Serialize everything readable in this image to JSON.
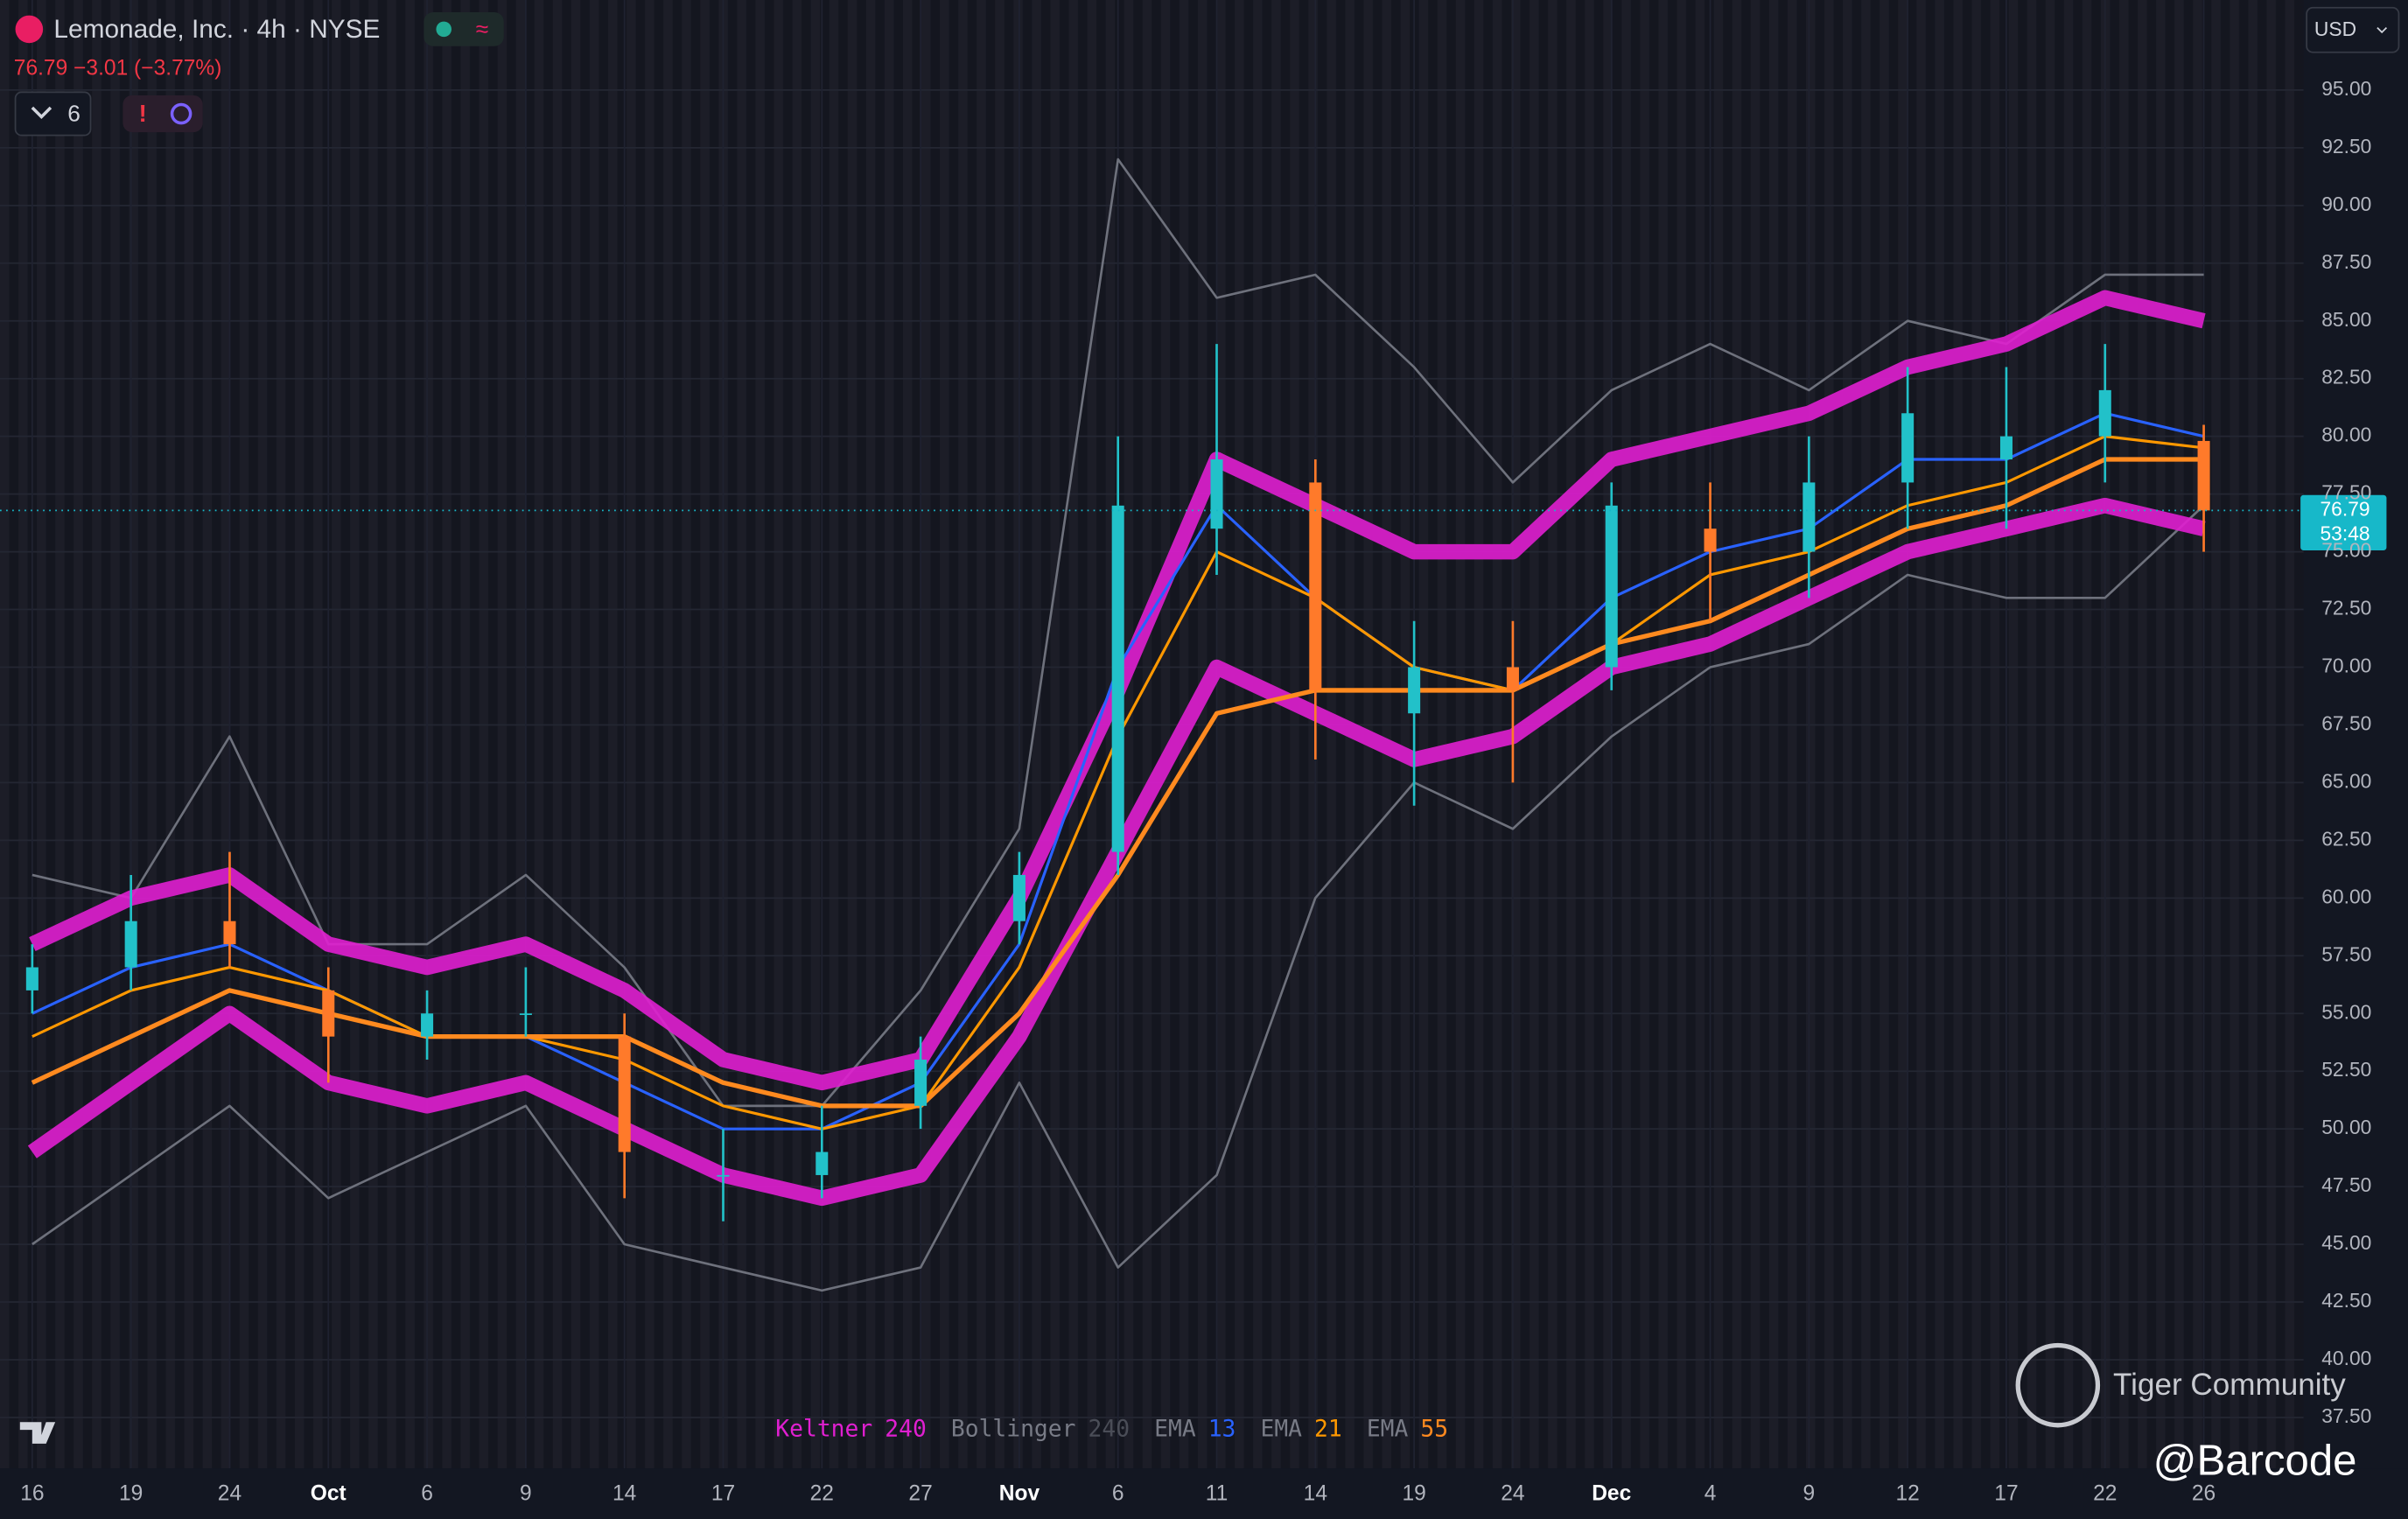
{
  "header": {
    "title": "Lemonade, Inc. · 4h · NYSE",
    "quote": "76.79 −3.01 (−3.77%)",
    "indicator_count": "6",
    "currency": "USD"
  },
  "price_tag": {
    "price": "76.79",
    "countdown": "53:48"
  },
  "watermark": {
    "brand": "Tiger Community",
    "user": "@Barcode"
  },
  "chart_data": {
    "type": "candlestick",
    "categories": [
      "16",
      "19",
      "24",
      "Oct",
      "6",
      "9",
      "14",
      "17",
      "22",
      "27",
      "Nov",
      "6",
      "11",
      "14",
      "19",
      "24",
      "Dec",
      "4",
      "9",
      "12",
      "17",
      "22",
      "26"
    ],
    "open": [
      56,
      57,
      59,
      56,
      54,
      55,
      54,
      48,
      48,
      51,
      59,
      62,
      76,
      78,
      68,
      70,
      70,
      76,
      75,
      78,
      79,
      80,
      79.8
    ],
    "high": [
      58,
      61,
      62,
      57,
      56,
      57,
      55,
      50,
      51,
      54,
      62,
      80,
      84,
      79,
      72,
      72,
      78,
      78,
      80,
      83,
      83,
      84,
      80.5
    ],
    "low": [
      55,
      56,
      57,
      52,
      53,
      54,
      47,
      46,
      47,
      50,
      58,
      61,
      74,
      66,
      64,
      65,
      69,
      72,
      73,
      76,
      76,
      78,
      75
    ],
    "close": [
      57,
      59,
      58,
      54,
      55,
      55,
      49,
      48,
      49,
      53,
      61,
      77,
      79,
      69,
      70,
      69,
      77,
      75,
      78,
      81,
      80,
      82,
      76.79
    ],
    "up_color": "#22c1c9",
    "down_color": "#ff7a2a",
    "series": [
      {
        "name": "Keltner",
        "param": "240",
        "color": "#e01fd0",
        "upper": [
          58,
          60,
          61,
          58,
          57,
          58,
          56,
          53,
          52,
          53,
          60,
          69,
          79,
          77,
          75,
          75,
          79,
          80,
          81,
          83,
          84,
          86,
          85
        ],
        "lower": [
          49,
          52,
          55,
          52,
          51,
          52,
          50,
          48,
          47,
          48,
          54,
          62,
          70,
          68,
          66,
          67,
          70,
          71,
          73,
          75,
          76,
          77,
          76
        ]
      },
      {
        "name": "Bollinger",
        "param": "240",
        "color": "#787b86",
        "upper": [
          61,
          60,
          67,
          58,
          58,
          61,
          57,
          51,
          51,
          56,
          63,
          92,
          86,
          87,
          83,
          78,
          82,
          84,
          82,
          85,
          84,
          87,
          87
        ],
        "lower": [
          45,
          48,
          51,
          47,
          49,
          51,
          45,
          44,
          43,
          44,
          52,
          44,
          48,
          60,
          65,
          63,
          67,
          70,
          71,
          74,
          73,
          73,
          77
        ]
      },
      {
        "name": "EMA",
        "param": "13",
        "color": "#2962ff",
        "values": [
          55,
          57,
          58,
          56,
          54,
          54,
          52,
          50,
          50,
          52,
          58,
          70,
          77,
          73,
          70,
          69,
          73,
          75,
          76,
          79,
          79,
          81,
          80
        ]
      },
      {
        "name": "EMA",
        "param": "21",
        "color": "#ff9800",
        "values": [
          54,
          56,
          57,
          56,
          54,
          54,
          53,
          51,
          50,
          51,
          57,
          67,
          75,
          73,
          70,
          69,
          71,
          74,
          75,
          77,
          78,
          80,
          79.5
        ]
      },
      {
        "name": "EMA",
        "param": "55",
        "color": "#ff8a1f",
        "values": [
          52,
          54,
          56,
          55,
          54,
          54,
          54,
          52,
          51,
          51,
          55,
          61,
          68,
          69,
          69,
          69,
          71,
          72,
          74,
          76,
          77,
          79,
          79
        ]
      }
    ],
    "ylim": [
      35.3,
      98.9
    ],
    "yticks": [
      {
        "value": 37.5,
        "label": "37.50"
      },
      {
        "value": 40,
        "label": "40.00"
      },
      {
        "value": 42.5,
        "label": "42.50"
      },
      {
        "value": 45,
        "label": "45.00"
      },
      {
        "value": 47.5,
        "label": "47.50"
      },
      {
        "value": 50,
        "label": "50.00"
      },
      {
        "value": 52.5,
        "label": "52.50"
      },
      {
        "value": 55,
        "label": "55.00"
      },
      {
        "value": 57.5,
        "label": "57.50"
      },
      {
        "value": 60,
        "label": "60.00"
      },
      {
        "value": 62.5,
        "label": "62.50"
      },
      {
        "value": 65,
        "label": "65.00"
      },
      {
        "value": 67.5,
        "label": "67.50"
      },
      {
        "value": 70,
        "label": "70.00"
      },
      {
        "value": 72.5,
        "label": "72.50"
      },
      {
        "value": 75,
        "label": "75.00"
      },
      {
        "value": 77.5,
        "label": "77.50"
      },
      {
        "value": 80,
        "label": "80.00"
      },
      {
        "value": 82.5,
        "label": "82.50"
      },
      {
        "value": 85,
        "label": "85.00"
      },
      {
        "value": 87.5,
        "label": "87.50"
      },
      {
        "value": 90,
        "label": "90.00"
      },
      {
        "value": 92.5,
        "label": "92.50"
      },
      {
        "value": 95,
        "label": "95.00"
      }
    ],
    "grid": true
  }
}
